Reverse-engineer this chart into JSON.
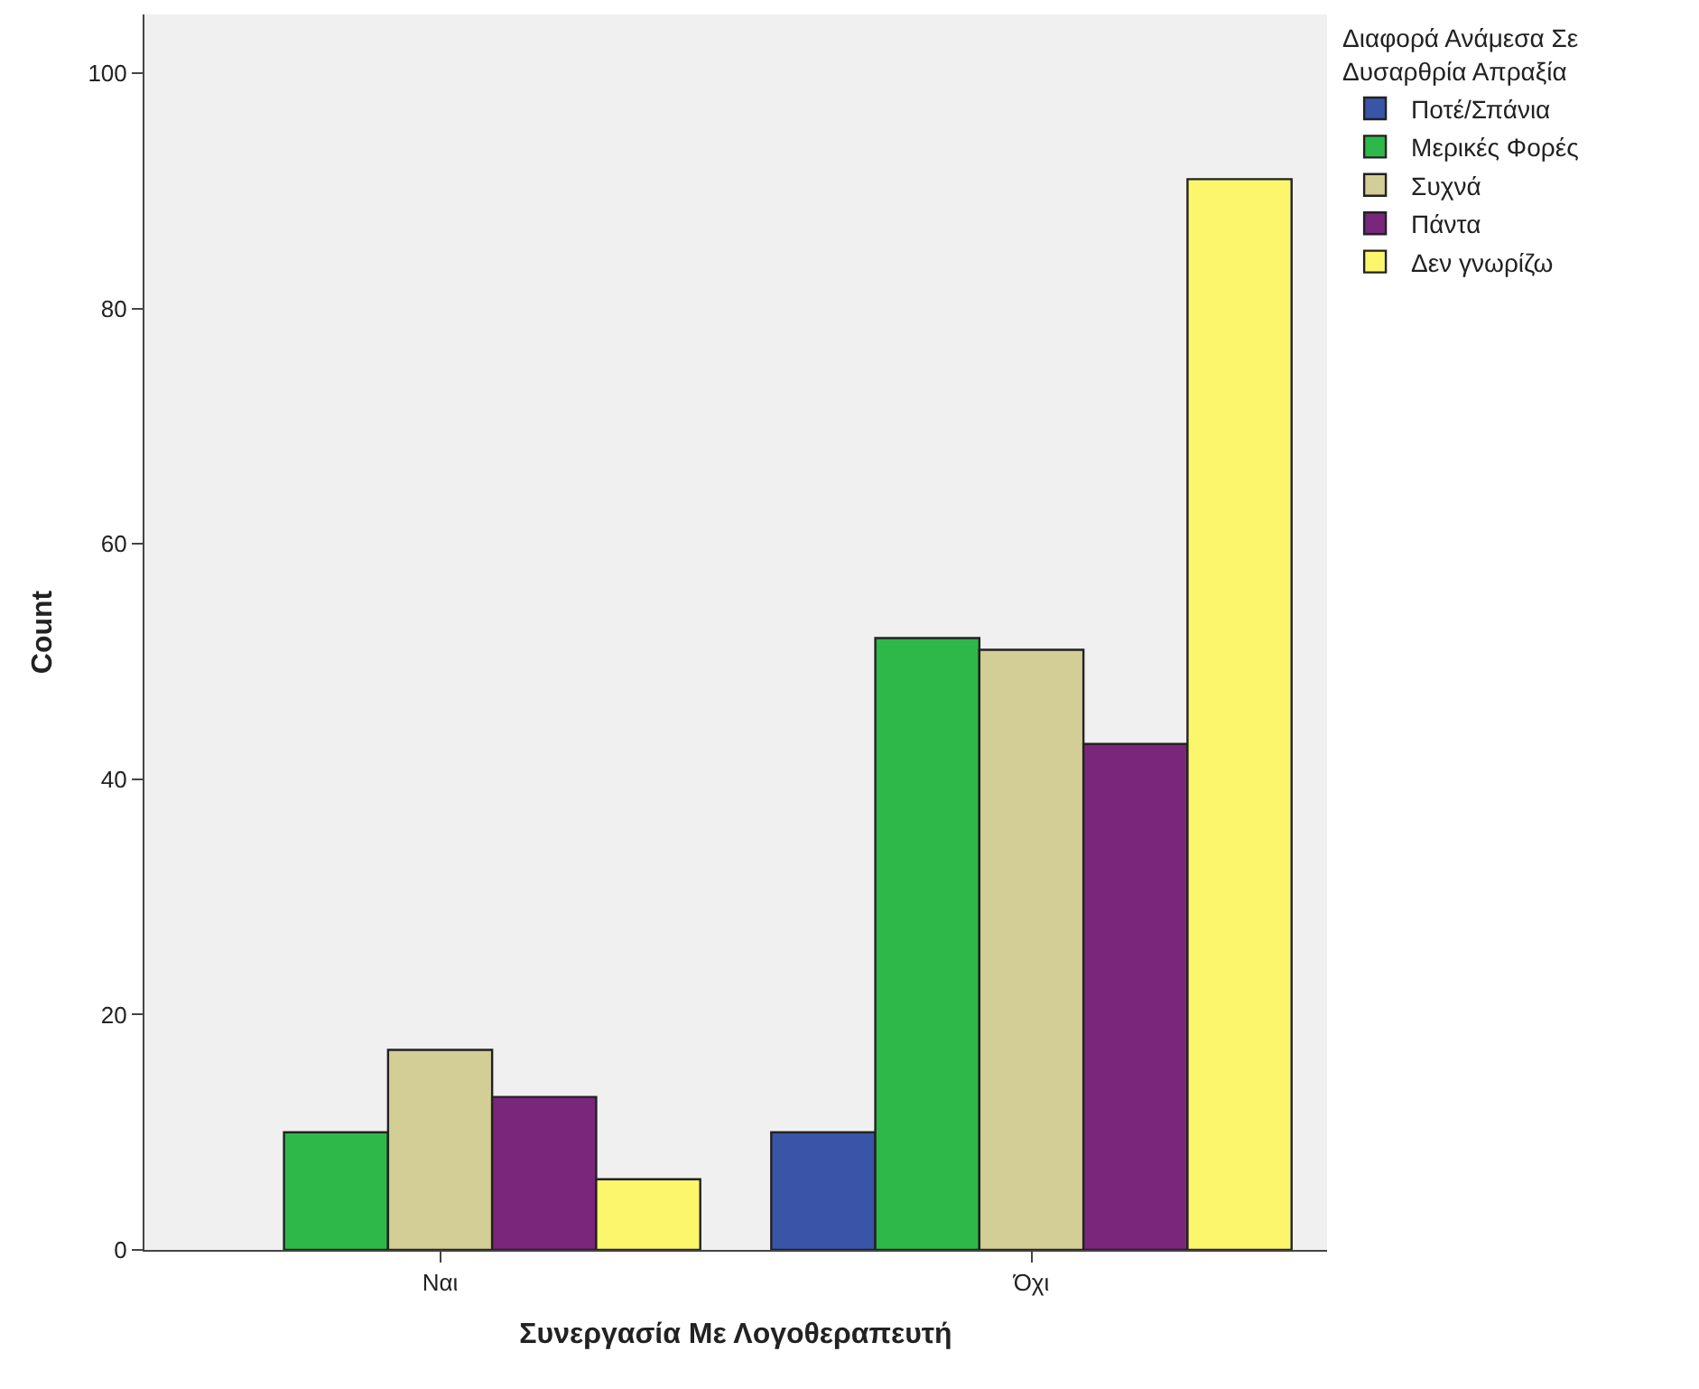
{
  "chart_data": {
    "type": "bar",
    "xlabel": "Συνεργασία Με Λογοθεραπευτή",
    "ylabel": "Count",
    "legend_title": "Διαφορά Ανάμεσα Σε Δυσαρθρία Απραξία",
    "categories": [
      "Ναι",
      "Όχι"
    ],
    "series": [
      {
        "name": "Ποτέ/Σπάνια",
        "color": "#3a55a8",
        "values": [
          null,
          10
        ]
      },
      {
        "name": "Μερικές Φορές",
        "color": "#2eb84a",
        "values": [
          10,
          52
        ]
      },
      {
        "name": "Συχνά",
        "color": "#d3cd96",
        "values": [
          17,
          51
        ]
      },
      {
        "name": "Πάντα",
        "color": "#7a267a",
        "values": [
          13,
          43
        ]
      },
      {
        "name": "Δεν γνωρίζω",
        "color": "#fbf66b",
        "values": [
          6,
          91
        ]
      }
    ],
    "ylim": [
      0,
      105
    ],
    "yticks": [
      0,
      20,
      40,
      60,
      80,
      100
    ],
    "grid": false,
    "legend": "top right"
  }
}
